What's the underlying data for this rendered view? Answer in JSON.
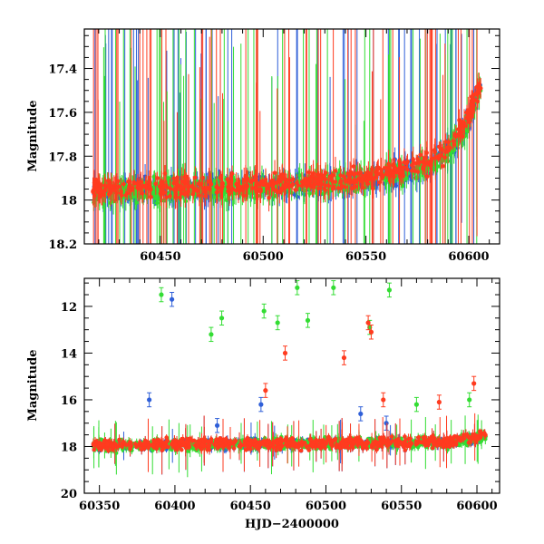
{
  "chart_data": [
    {
      "type": "scatter",
      "panel": "top",
      "title": "",
      "xlabel": "",
      "ylabel": "Magnitude",
      "xlim": [
        60413,
        60615
      ],
      "ylim": [
        18.2,
        17.22
      ],
      "y_inverted": true,
      "xticks": [
        60450,
        60500,
        60550,
        60600
      ],
      "yticks": [
        17.4,
        17.6,
        17.8,
        18,
        18.2
      ],
      "ytick_labels": [
        "17.4",
        "17.6",
        "17.8",
        "18",
        "18.2"
      ],
      "grid": false,
      "series": [
        {
          "color": "#2f5fd8",
          "marker": "circle with error bars",
          "x": [
            60420,
            60440,
            60460,
            60480,
            60500,
            60520,
            60540,
            60560,
            60580,
            60590,
            60600,
            60605
          ],
          "y": [
            17.96,
            17.95,
            17.95,
            17.94,
            17.93,
            17.93,
            17.92,
            17.89,
            17.84,
            17.78,
            17.65,
            17.5
          ]
        },
        {
          "color": "#33dd33",
          "marker": "circle with error bars",
          "x": [
            60420,
            60440,
            60460,
            60480,
            60500,
            60520,
            60540,
            60560,
            60580,
            60590,
            60600,
            60605
          ],
          "y": [
            17.97,
            17.96,
            17.95,
            17.95,
            17.94,
            17.93,
            17.92,
            17.9,
            17.85,
            17.79,
            17.66,
            17.52
          ]
        },
        {
          "color": "#ff3b1f",
          "marker": "circle with error bars",
          "x": [
            60420,
            60440,
            60460,
            60480,
            60500,
            60520,
            60540,
            60560,
            60580,
            60590,
            60600,
            60605
          ],
          "y": [
            17.95,
            17.94,
            17.94,
            17.93,
            17.93,
            17.92,
            17.91,
            17.88,
            17.83,
            17.76,
            17.62,
            17.48
          ]
        }
      ]
    },
    {
      "type": "scatter",
      "panel": "bottom",
      "title": "",
      "xlabel": "HJD−2400000",
      "ylabel": "Magnitude",
      "xlim": [
        60340,
        60615
      ],
      "ylim": [
        20,
        10.8
      ],
      "y_inverted": true,
      "xticks": [
        60350,
        60400,
        60450,
        60500,
        60550,
        60600
      ],
      "yticks": [
        12,
        14,
        16,
        18,
        20
      ],
      "ytick_labels": [
        "12",
        "14",
        "16",
        "18",
        "20"
      ],
      "grid": false,
      "series": [
        {
          "color": "#2f5fd8",
          "marker": "circle with error bars",
          "x": [
            60350,
            60380,
            60400,
            60450,
            60500,
            60550,
            60580,
            60600,
            60605
          ],
          "y": [
            17.95,
            17.93,
            17.92,
            17.9,
            17.88,
            17.85,
            17.8,
            17.65,
            17.5
          ],
          "outliers": {
            "x": [
              60383,
              60398,
              60428,
              60457,
              60523,
              60540
            ],
            "y": [
              16.0,
              11.7,
              17.1,
              16.2,
              16.6,
              17.0
            ]
          }
        },
        {
          "color": "#33dd33",
          "marker": "circle with error bars",
          "x": [
            60350,
            60380,
            60400,
            60450,
            60500,
            60550,
            60580,
            60600,
            60605
          ],
          "y": [
            17.96,
            17.94,
            17.93,
            17.91,
            17.89,
            17.86,
            17.81,
            17.66,
            17.52
          ],
          "outliers": {
            "x": [
              60391,
              60424,
              60431,
              60459,
              60468,
              60481,
              60488,
              60505,
              60529,
              60542,
              60560,
              60595
            ],
            "y": [
              11.5,
              13.2,
              12.5,
              12.2,
              12.7,
              11.2,
              12.6,
              11.2,
              12.9,
              11.3,
              16.2,
              16.0
            ]
          }
        },
        {
          "color": "#ff3b1f",
          "marker": "circle with error bars",
          "x": [
            60350,
            60380,
            60400,
            60450,
            60500,
            60550,
            60580,
            60600,
            60605
          ],
          "y": [
            17.94,
            17.92,
            17.91,
            17.89,
            17.87,
            17.84,
            17.79,
            17.63,
            17.48
          ],
          "outliers": {
            "x": [
              60473,
              60512,
              60528,
              60530,
              60538,
              60575,
              60598,
              60460
            ],
            "y": [
              14.0,
              14.2,
              12.7,
              13.1,
              16.0,
              16.1,
              15.3,
              15.6
            ]
          }
        }
      ]
    }
  ]
}
